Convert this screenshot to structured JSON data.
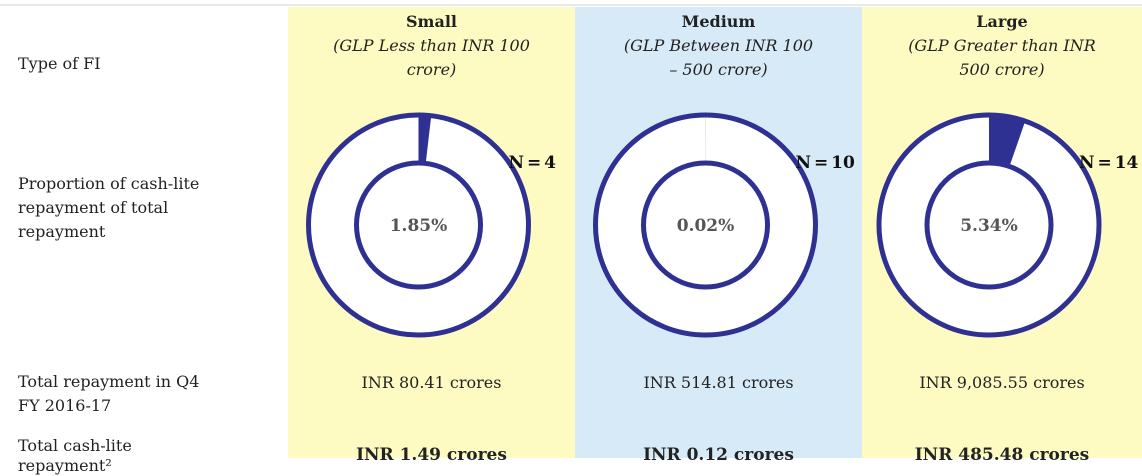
{
  "row_labels": [
    "Type of FI",
    "Proportion of cash-lite repayment of total repayment",
    "Total repayment in Q4 FY 2016-17",
    "Total cash-lite repayment²"
  ],
  "chart_data": [
    {
      "type": "pie",
      "title": "Small",
      "subtitle": "(GLP Less than INR 100 crore)",
      "values": [
        1.85
      ],
      "value_labels": [
        "1.85%"
      ],
      "n_label": "N = 4",
      "color": "#2e3192",
      "background": "#fdfbc2",
      "total_repayment": "INR 80.41 crores",
      "cash_lite_repayment": "INR 1.49 crores"
    },
    {
      "type": "pie",
      "title": "Medium",
      "subtitle": "(GLP Between INR 100 – 500 crore)",
      "values": [
        0.02
      ],
      "value_labels": [
        "0.02%"
      ],
      "n_label": "N = 10",
      "color": "#2e3192",
      "background": "#d7eaf7",
      "total_repayment": "INR 514.81 crores",
      "cash_lite_repayment": "INR 0.12 crores"
    },
    {
      "type": "pie",
      "title": "Large",
      "subtitle": "(GLP Greater than INR 500 crore)",
      "values": [
        5.34
      ],
      "value_labels": [
        "5.34%"
      ],
      "n_label": "N = 14",
      "color": "#2e3192",
      "background": "#fdfbc2",
      "total_repayment": "INR 9,085.55 crores",
      "cash_lite_repayment": "INR 485.48 crores"
    }
  ]
}
